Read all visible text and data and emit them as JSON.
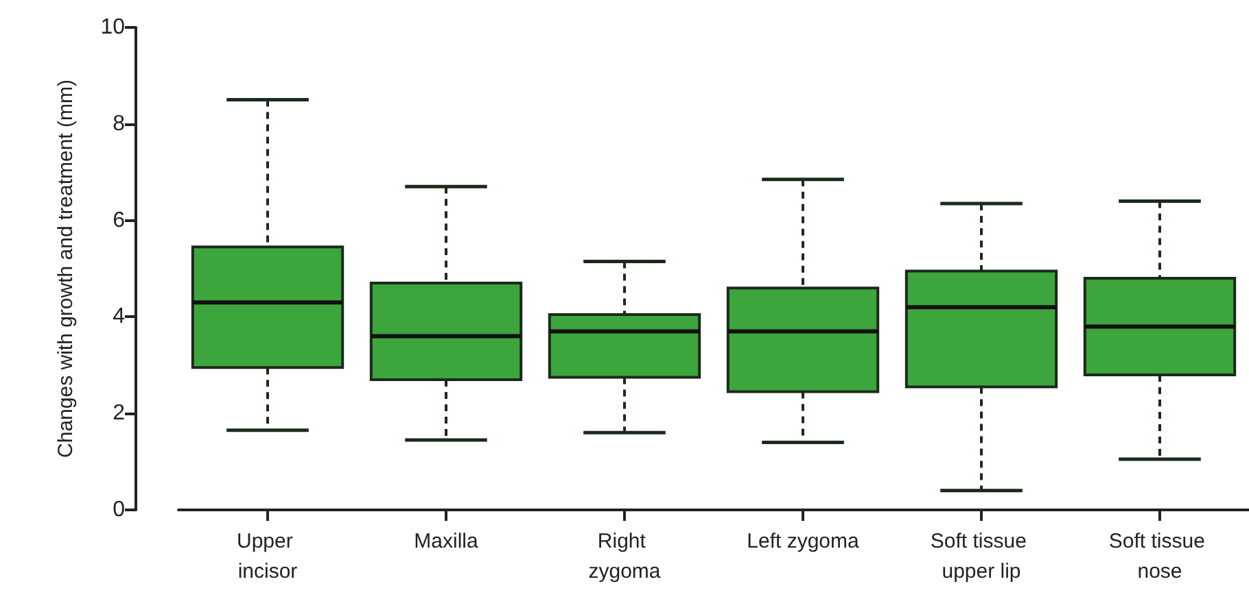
{
  "chart_data": {
    "type": "box",
    "ylabel": "Changes with growth and treatment (mm)",
    "categories": [
      "Upper incisor",
      "Maxilla",
      "Right zygoma",
      "Left zygoma",
      "Soft tissue upper lip",
      "Soft tissue nose"
    ],
    "color": "#3ca53c",
    "boxes": [
      {
        "low": 1.65,
        "q1": 2.95,
        "median": 4.3,
        "q3": 5.45,
        "high": 8.5
      },
      {
        "low": 1.45,
        "q1": 2.7,
        "median": 3.6,
        "q3": 4.7,
        "high": 6.7
      },
      {
        "low": 1.6,
        "q1": 2.75,
        "median": 3.7,
        "q3": 4.05,
        "high": 5.15
      },
      {
        "low": 1.4,
        "q1": 2.45,
        "median": 3.7,
        "q3": 4.6,
        "high": 6.85
      },
      {
        "low": 0.4,
        "q1": 2.55,
        "median": 4.2,
        "q3": 4.95,
        "high": 6.35
      },
      {
        "low": 1.05,
        "q1": 2.8,
        "median": 3.8,
        "q3": 4.8,
        "high": 6.4
      }
    ],
    "ylim": [
      0,
      10
    ],
    "yticks": [
      0,
      2,
      4,
      6,
      8,
      10
    ],
    "grid": false,
    "line_style": "dashed"
  }
}
